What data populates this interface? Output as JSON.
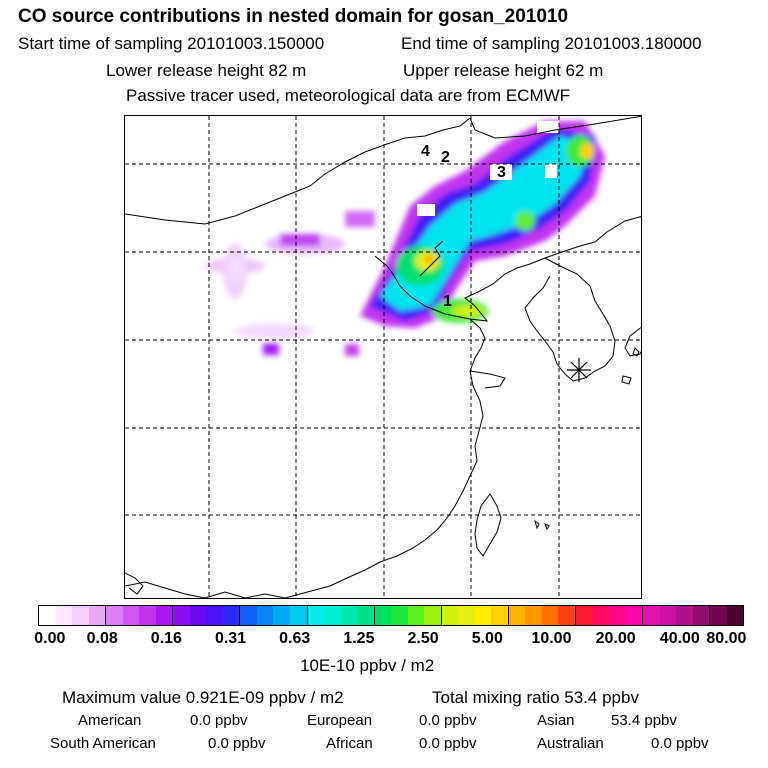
{
  "header": {
    "title": "CO  source contributions in nested domain for gosan_201010",
    "start_sampling": "Start time of sampling 20101003.150000",
    "end_sampling": "End time of sampling 20101003.180000",
    "lower_release": "Lower release height   82 m",
    "upper_release": "Upper release height   62 m",
    "tracer_note": "Passive tracer used, meteorological data are from ECMWF"
  },
  "map": {
    "labels": [
      "4",
      "2",
      "3",
      "1"
    ],
    "station_marker": "asterisk-station-icon"
  },
  "colorbar": {
    "ticks": [
      "0.00",
      "0.08",
      "0.16",
      "0.31",
      "0.63",
      "1.25",
      "2.50",
      "5.00",
      "10.00",
      "20.00",
      "40.00",
      "80.00"
    ],
    "unit": "10E-10 ppbv / m2",
    "colors": [
      "#ffffff",
      "#fbe8ff",
      "#f3cdfd",
      "#e9a9f9",
      "#dc7ff5",
      "#d056f3",
      "#c334f1",
      "#a918ef",
      "#8a10f0",
      "#6a0cf3",
      "#4a12f5",
      "#2a2cf5",
      "#1060f5",
      "#0a84f5",
      "#04a8f3",
      "#00ccf0",
      "#00eef0",
      "#00f0d6",
      "#00e8b2",
      "#00e088",
      "#00e060",
      "#1ae83a",
      "#5af022",
      "#9af010",
      "#d0f010",
      "#e8ee10",
      "#ffee00",
      "#ffd000",
      "#ffb400",
      "#ff9600",
      "#ff7000",
      "#ff4010",
      "#ff1830",
      "#ff0a60",
      "#ff0888",
      "#f808a6",
      "#e410b0",
      "#cc10a6",
      "#b0108c",
      "#900a70",
      "#70064e",
      "#4a0430"
    ]
  },
  "summary": {
    "max_value": "Maximum value  0.921E-09 ppbv / m2",
    "total_mixing": "Total mixing ratio       53.4 ppbv",
    "american_label": "American",
    "american_value": "0.0 ppbv",
    "european_label": "European",
    "european_value": "0.0 ppbv",
    "asian_label": "Asian",
    "asian_value": "53.4 ppbv",
    "south_american_label": "South American",
    "south_american_value": "0.0 ppbv",
    "african_label": "African",
    "african_value": "0.0 ppbv",
    "australian_label": "Australian",
    "australian_value": "0.0 ppbv"
  }
}
